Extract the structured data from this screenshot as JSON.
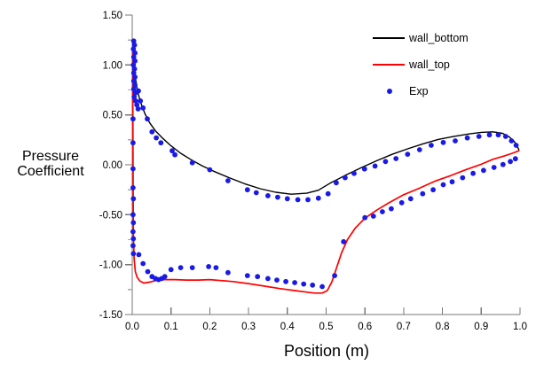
{
  "figure": {
    "background": "#ffffff"
  },
  "axis_labels": {
    "y_line1": "Pressure",
    "y_line2": "Coefficient",
    "x": "Position (m)"
  },
  "legend": {
    "position": "top-right",
    "items": [
      {
        "label": "wall_bottom",
        "type": "line",
        "color": "#000000"
      },
      {
        "label": "wall_top",
        "type": "line",
        "color": "#ff0000"
      },
      {
        "label": "Exp",
        "type": "dot",
        "color": "#1a1ae6"
      }
    ]
  },
  "chart_data": {
    "type": "line",
    "title": "",
    "xlabel": "Position (m)",
    "ylabel": "Pressure Coefficient",
    "xlim": [
      0.0,
      1.0
    ],
    "ylim": [
      -1.5,
      1.5
    ],
    "grid": false,
    "legend_position": "top-right",
    "axis_color": "#777777",
    "minor_tick_color": "#aaaaaa",
    "x_ticks": [
      0.0,
      0.1,
      0.2,
      0.3,
      0.4,
      0.5,
      0.6,
      0.7,
      0.8,
      0.9,
      1.0
    ],
    "x_tick_labels": [
      "0.0",
      "0.1",
      "0.2",
      "0.3",
      "0.4",
      "0.5",
      "0.6",
      "0.7",
      "0.8",
      "0.9",
      "1.0"
    ],
    "y_ticks": [
      1.5,
      1.0,
      0.5,
      0.0,
      -0.5,
      -1.0,
      -1.5
    ],
    "y_tick_labels": [
      "1.50",
      "1.00",
      "0.50",
      "0.00",
      "-0.50",
      "-1.00",
      "-1.50"
    ],
    "y_minor_ticks": [
      1.25,
      0.75,
      0.25,
      -0.25,
      -0.75,
      -1.25
    ],
    "series": [
      {
        "name": "wall_bottom",
        "type": "line",
        "color": "#000000",
        "width": 1.4,
        "points": [
          [
            0.0015,
            1.23
          ],
          [
            0.003,
            1.1
          ],
          [
            0.005,
            0.98
          ],
          [
            0.008,
            0.88
          ],
          [
            0.012,
            0.78
          ],
          [
            0.017,
            0.69
          ],
          [
            0.024,
            0.6
          ],
          [
            0.033,
            0.51
          ],
          [
            0.045,
            0.42
          ],
          [
            0.06,
            0.34
          ],
          [
            0.08,
            0.26
          ],
          [
            0.1,
            0.19
          ],
          [
            0.125,
            0.115
          ],
          [
            0.15,
            0.055
          ],
          [
            0.18,
            -0.01
          ],
          [
            0.21,
            -0.065
          ],
          [
            0.25,
            -0.13
          ],
          [
            0.29,
            -0.19
          ],
          [
            0.33,
            -0.24
          ],
          [
            0.37,
            -0.275
          ],
          [
            0.41,
            -0.295
          ],
          [
            0.45,
            -0.285
          ],
          [
            0.48,
            -0.255
          ],
          [
            0.51,
            -0.185
          ],
          [
            0.55,
            -0.105
          ],
          [
            0.59,
            -0.03
          ],
          [
            0.63,
            0.04
          ],
          [
            0.67,
            0.105
          ],
          [
            0.71,
            0.16
          ],
          [
            0.75,
            0.21
          ],
          [
            0.79,
            0.255
          ],
          [
            0.83,
            0.285
          ],
          [
            0.87,
            0.31
          ],
          [
            0.9,
            0.325
          ],
          [
            0.93,
            0.33
          ],
          [
            0.955,
            0.315
          ],
          [
            0.972,
            0.28
          ],
          [
            0.985,
            0.235
          ],
          [
            0.993,
            0.185
          ],
          [
            0.997,
            0.15
          ]
        ]
      },
      {
        "name": "wall_top",
        "type": "line",
        "color": "#ff0000",
        "width": 1.7,
        "points": [
          [
            0.0012,
            1.15
          ],
          [
            0.0015,
            0.6
          ],
          [
            0.002,
            0.1
          ],
          [
            0.0025,
            -0.35
          ],
          [
            0.003,
            -0.7
          ],
          [
            0.005,
            -0.95
          ],
          [
            0.008,
            -1.07
          ],
          [
            0.013,
            -1.13
          ],
          [
            0.02,
            -1.165
          ],
          [
            0.03,
            -1.185
          ],
          [
            0.045,
            -1.175
          ],
          [
            0.06,
            -1.16
          ],
          [
            0.08,
            -1.15
          ],
          [
            0.11,
            -1.15
          ],
          [
            0.14,
            -1.155
          ],
          [
            0.17,
            -1.155
          ],
          [
            0.2,
            -1.15
          ],
          [
            0.23,
            -1.16
          ],
          [
            0.26,
            -1.17
          ],
          [
            0.3,
            -1.19
          ],
          [
            0.34,
            -1.215
          ],
          [
            0.38,
            -1.24
          ],
          [
            0.42,
            -1.26
          ],
          [
            0.45,
            -1.275
          ],
          [
            0.47,
            -1.285
          ],
          [
            0.49,
            -1.285
          ],
          [
            0.503,
            -1.26
          ],
          [
            0.515,
            -1.17
          ],
          [
            0.527,
            -1.03
          ],
          [
            0.54,
            -0.88
          ],
          [
            0.555,
            -0.75
          ],
          [
            0.575,
            -0.635
          ],
          [
            0.6,
            -0.535
          ],
          [
            0.63,
            -0.455
          ],
          [
            0.66,
            -0.385
          ],
          [
            0.7,
            -0.3
          ],
          [
            0.74,
            -0.235
          ],
          [
            0.78,
            -0.165
          ],
          [
            0.82,
            -0.11
          ],
          [
            0.86,
            -0.05
          ],
          [
            0.9,
            0.005
          ],
          [
            0.93,
            0.055
          ],
          [
            0.96,
            0.09
          ],
          [
            0.98,
            0.115
          ],
          [
            0.997,
            0.14
          ]
        ]
      },
      {
        "name": "Exp",
        "type": "scatter",
        "color": "#1a1ae6",
        "marker": "circle",
        "size": 2.9,
        "points": [
          [
            0.004,
            1.24
          ],
          [
            0.006,
            1.2
          ],
          [
            0.003,
            1.16
          ],
          [
            0.007,
            1.12
          ],
          [
            0.004,
            1.08
          ],
          [
            0.007,
            1.04
          ],
          [
            0.003,
            1.0
          ],
          [
            0.006,
            0.96
          ],
          [
            0.004,
            0.92
          ],
          [
            0.007,
            0.88
          ],
          [
            0.004,
            0.84
          ],
          [
            0.007,
            0.8
          ],
          [
            0.004,
            0.76
          ],
          [
            0.008,
            0.72
          ],
          [
            0.005,
            0.68
          ],
          [
            0.009,
            0.64
          ],
          [
            0.012,
            0.6
          ],
          [
            0.015,
            0.56
          ],
          [
            0.002,
            0.46
          ],
          [
            0.002,
            0.22
          ],
          [
            0.002,
            -0.04
          ],
          [
            0.002,
            -0.23
          ],
          [
            0.003,
            -0.34
          ],
          [
            0.002,
            -0.5
          ],
          [
            0.003,
            -0.58
          ],
          [
            0.002,
            -0.67
          ],
          [
            0.003,
            -0.74
          ],
          [
            0.002,
            -0.81
          ],
          [
            0.003,
            -0.89
          ],
          [
            0.017,
            -0.9
          ],
          [
            0.028,
            -0.99
          ],
          [
            0.04,
            -1.07
          ],
          [
            0.051,
            -1.12
          ],
          [
            0.06,
            -1.14
          ],
          [
            0.068,
            -1.15
          ],
          [
            0.076,
            -1.14
          ],
          [
            0.084,
            -1.12
          ],
          [
            0.1,
            -1.05
          ],
          [
            0.125,
            -1.03
          ],
          [
            0.155,
            -1.03
          ],
          [
            0.197,
            -1.02
          ],
          [
            0.216,
            -1.03
          ],
          [
            0.247,
            -1.08
          ],
          [
            0.297,
            -1.11
          ],
          [
            0.323,
            -1.12
          ],
          [
            0.35,
            -1.14
          ],
          [
            0.373,
            -1.155
          ],
          [
            0.396,
            -1.17
          ],
          [
            0.419,
            -1.18
          ],
          [
            0.442,
            -1.195
          ],
          [
            0.465,
            -1.205
          ],
          [
            0.49,
            -1.22
          ],
          [
            0.522,
            -1.11
          ],
          [
            0.545,
            -0.77
          ],
          [
            0.6,
            -0.53
          ],
          [
            0.622,
            -0.515
          ],
          [
            0.645,
            -0.47
          ],
          [
            0.668,
            -0.44
          ],
          [
            0.695,
            -0.38
          ],
          [
            0.718,
            -0.34
          ],
          [
            0.749,
            -0.29
          ],
          [
            0.776,
            -0.25
          ],
          [
            0.802,
            -0.2
          ],
          [
            0.825,
            -0.17
          ],
          [
            0.852,
            -0.13
          ],
          [
            0.879,
            -0.086
          ],
          [
            0.906,
            -0.056
          ],
          [
            0.933,
            -0.027
          ],
          [
            0.956,
            0.003
          ],
          [
            0.975,
            0.033
          ],
          [
            0.988,
            0.06
          ],
          [
            0.016,
            0.74
          ],
          [
            0.021,
            0.64
          ],
          [
            0.028,
            0.57
          ],
          [
            0.039,
            0.46
          ],
          [
            0.051,
            0.33
          ],
          [
            0.062,
            0.27
          ],
          [
            0.074,
            0.22
          ],
          [
            0.103,
            0.14
          ],
          [
            0.11,
            0.1
          ],
          [
            0.155,
            0.02
          ],
          [
            0.2,
            -0.05
          ],
          [
            0.247,
            -0.16
          ],
          [
            0.297,
            -0.25
          ],
          [
            0.32,
            -0.28
          ],
          [
            0.35,
            -0.31
          ],
          [
            0.375,
            -0.325
          ],
          [
            0.4,
            -0.34
          ],
          [
            0.427,
            -0.35
          ],
          [
            0.453,
            -0.35
          ],
          [
            0.48,
            -0.335
          ],
          [
            0.505,
            -0.29
          ],
          [
            0.526,
            -0.18
          ],
          [
            0.549,
            -0.13
          ],
          [
            0.572,
            -0.086
          ],
          [
            0.599,
            -0.042
          ],
          [
            0.626,
            -0.012
          ],
          [
            0.653,
            0.033
          ],
          [
            0.68,
            0.062
          ],
          [
            0.71,
            0.106
          ],
          [
            0.741,
            0.151
          ],
          [
            0.771,
            0.195
          ],
          [
            0.802,
            0.224
          ],
          [
            0.833,
            0.24
          ],
          [
            0.864,
            0.269
          ],
          [
            0.894,
            0.284
          ],
          [
            0.921,
            0.3
          ],
          [
            0.944,
            0.3
          ],
          [
            0.963,
            0.284
          ],
          [
            0.978,
            0.24
          ],
          [
            0.99,
            0.195
          ]
        ]
      }
    ]
  }
}
